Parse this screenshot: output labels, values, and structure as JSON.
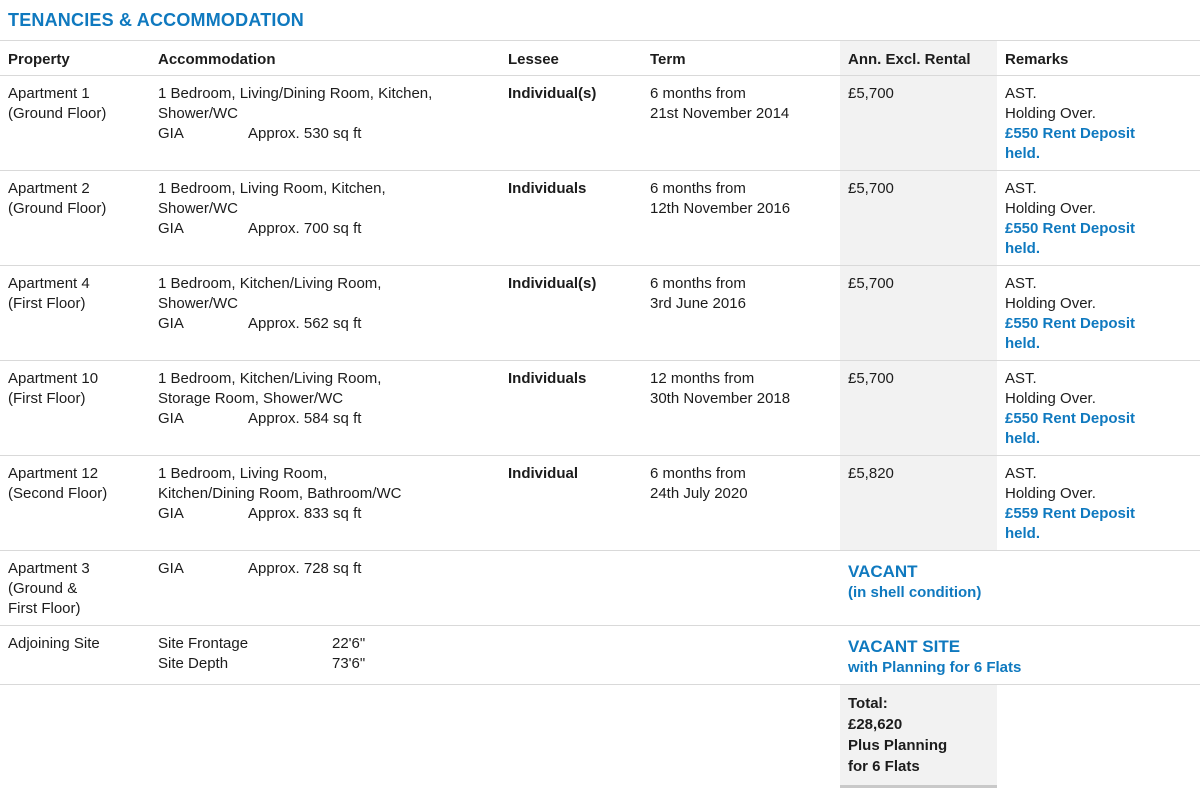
{
  "title": "TENANCIES & ACCOMMODATION",
  "colors": {
    "accent_blue": "#0f79bf",
    "band_gray": "#f2f2f2",
    "divider_gray": "#d9d9d9"
  },
  "table": {
    "headers": {
      "property": "Property",
      "accommodation": "Accommodation",
      "lessee": "Lessee",
      "term": "Term",
      "rental": "Ann. Excl. Rental",
      "remarks": "Remarks"
    },
    "rows": [
      {
        "property": "Apartment 1\n(Ground Floor)",
        "accommodation": {
          "desc": "1 Bedroom, Living/Dining Room, Kitchen,\nShower/WC",
          "specs": [
            {
              "label": "GIA",
              "value": "Approx. 530 sq ft"
            }
          ]
        },
        "lessee": "Individual(s)",
        "term": "6 months from\n21st November 2014",
        "rental": "£5,700",
        "remarks": {
          "plain": "AST.\nHolding Over.",
          "highlight": "£550 Rent Deposit\nheld."
        }
      },
      {
        "property": "Apartment 2\n(Ground Floor)",
        "accommodation": {
          "desc": "1 Bedroom, Living Room, Kitchen,\nShower/WC",
          "specs": [
            {
              "label": "GIA",
              "value": "Approx. 700 sq ft"
            }
          ]
        },
        "lessee": "Individuals",
        "term": "6 months from\n12th November 2016",
        "rental": "£5,700",
        "remarks": {
          "plain": "AST.\nHolding Over.",
          "highlight": "£550 Rent Deposit\nheld."
        }
      },
      {
        "property": "Apartment 4\n(First Floor)",
        "accommodation": {
          "desc": "1 Bedroom, Kitchen/Living Room,\nShower/WC",
          "specs": [
            {
              "label": "GIA",
              "value": "Approx. 562 sq ft"
            }
          ]
        },
        "lessee": "Individual(s)",
        "term": "6 months from\n3rd June 2016",
        "rental": "£5,700",
        "remarks": {
          "plain": "AST.\nHolding Over.",
          "highlight": "£550 Rent Deposit\nheld."
        }
      },
      {
        "property": "Apartment 10\n(First Floor)",
        "accommodation": {
          "desc": "1 Bedroom, Kitchen/Living Room,\nStorage Room, Shower/WC",
          "specs": [
            {
              "label": "GIA",
              "value": "Approx. 584 sq ft"
            }
          ]
        },
        "lessee": "Individuals",
        "term": "12 months from\n30th November 2018",
        "rental": "£5,700",
        "remarks": {
          "plain": "AST.\nHolding Over.",
          "highlight": "£550 Rent Deposit\nheld."
        }
      },
      {
        "property": "Apartment 12\n(Second Floor)",
        "accommodation": {
          "desc": "1 Bedroom, Living Room,\nKitchen/Dining Room, Bathroom/WC",
          "specs": [
            {
              "label": "GIA",
              "value": "Approx. 833 sq ft"
            }
          ]
        },
        "lessee": "Individual",
        "term": "6 months from\n24th July 2020",
        "rental": "£5,820",
        "remarks": {
          "plain": "AST.\nHolding Over.",
          "highlight": "£559 Rent Deposit\nheld."
        }
      },
      {
        "property": "Apartment 3\n(Ground &\nFirst Floor)",
        "accommodation": {
          "specs": [
            {
              "label": "GIA",
              "value": "Approx. 728 sq ft"
            }
          ]
        },
        "vacant": {
          "heading": "VACANT",
          "sub": "(in shell condition)"
        }
      },
      {
        "property": "Adjoining Site",
        "accommodation": {
          "specs": [
            {
              "label": "Site Frontage",
              "value": "22'6\""
            },
            {
              "label": "Site Depth",
              "value": "73'6\""
            }
          ]
        },
        "vacant": {
          "heading": "VACANT SITE",
          "sub": "with Planning for 6 Flats"
        }
      }
    ],
    "total": {
      "lines": "Total:\n£28,620\nPlus Planning\nfor 6 Flats"
    }
  }
}
